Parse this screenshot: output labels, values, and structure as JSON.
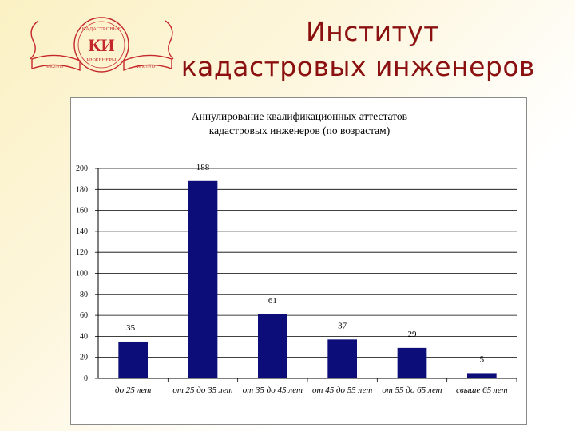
{
  "slide": {
    "title_line1": "Институт",
    "title_line2": "кадастровых инженеров",
    "logo": {
      "icon": "ki-institute-emblem",
      "text_top": "КАДАСТРОВЫЕ",
      "monogram": "КИ",
      "text_bottom": "ИНЖЕНЕРЫ",
      "ribbon_left": "ИНСТИТУТ",
      "ribbon_right": "ИНСТИТУТ"
    }
  },
  "colors": {
    "title": "#8b1010",
    "bar": "#0d0d7a",
    "logo": "#c5282a"
  },
  "chart_data": {
    "type": "bar",
    "title": "Аннулирование квалификационных аттестатов кадастровых инженеров (по возрастам)",
    "title_line1": "Аннулирование квалификационных аттестатов",
    "title_line2": "кадастровых инженеров (по возрастам)",
    "categories": [
      "до 25 лет",
      "от 25 до 35 лет",
      "от 35 до 45 лет",
      "от 45 до 55 лет",
      "от 55 до 65 лет",
      "свыше 65 лет"
    ],
    "values": [
      35,
      188,
      61,
      37,
      29,
      5
    ],
    "value_labels": [
      "35",
      "188",
      "61",
      "37",
      "29",
      "5"
    ],
    "ylim": [
      0,
      200
    ],
    "yticks": [
      "0",
      "20",
      "40",
      "60",
      "80",
      "100",
      "120",
      "140",
      "160",
      "180",
      "200"
    ],
    "xlabel": "",
    "ylabel": "",
    "grid": true,
    "legend": "none"
  }
}
